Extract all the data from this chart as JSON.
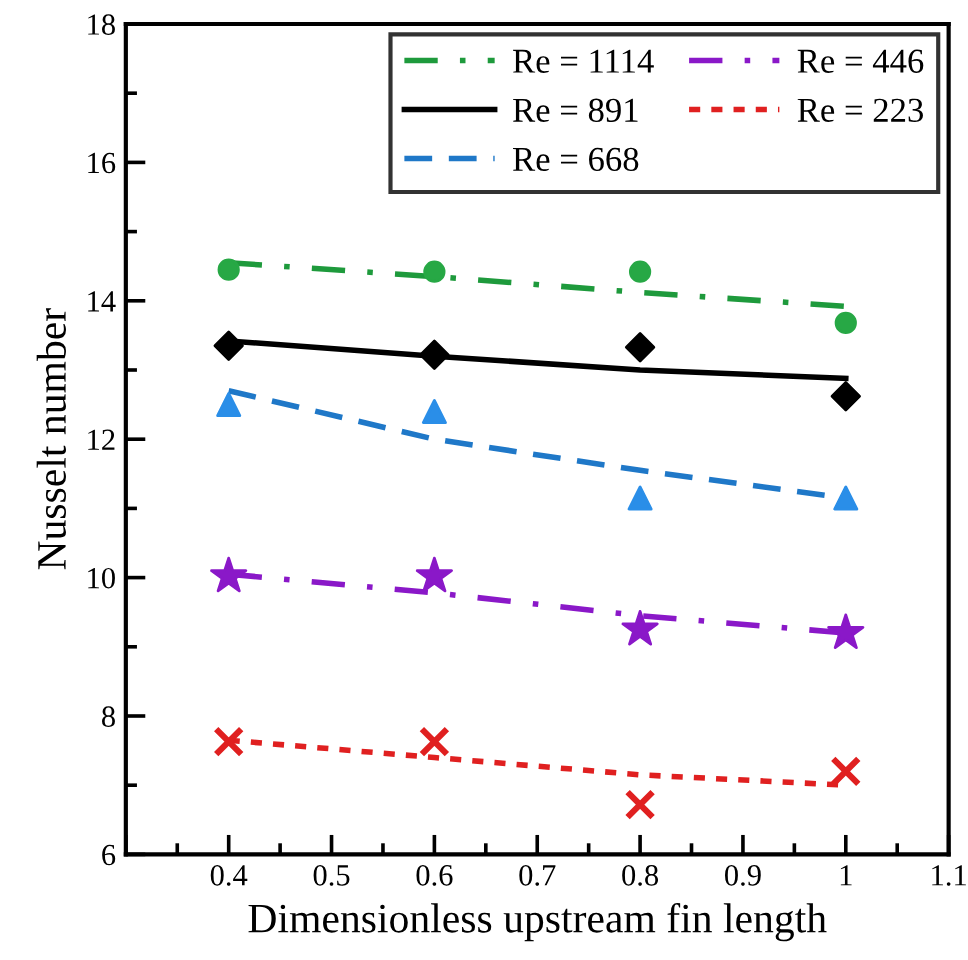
{
  "chart_data": {
    "type": "scatter",
    "xlabel": "Dimensionless upstream fin length",
    "ylabel": "Nusselt number",
    "xlim": [
      0.3,
      1.1
    ],
    "xticks": [
      {
        "value": 0.3,
        "label": null
      },
      0.4,
      0.5,
      0.6,
      0.7,
      0.8,
      0.9,
      1,
      1.1
    ],
    "ylim": [
      6,
      18
    ],
    "yticks": [
      6,
      8,
      10,
      12,
      14,
      16,
      18
    ],
    "grid": false,
    "legend": "top right",
    "series": [
      {
        "name": "Re = 1114",
        "type": "line",
        "color": "#1e9a3c",
        "line_style": "dashdot",
        "marker": "none",
        "x": [
          0.4,
          0.6,
          0.8,
          1.0
        ],
        "values": [
          14.55,
          14.35,
          14.12,
          13.92
        ]
      },
      {
        "name": "Re = 891",
        "type": "line",
        "color": "#000000",
        "line_style": "solid",
        "marker": "none",
        "x": [
          0.4,
          0.6,
          0.8,
          1.0
        ],
        "values": [
          13.42,
          13.2,
          13.0,
          12.88
        ]
      },
      {
        "name": "Re = 668",
        "type": "line",
        "color": "#1f78c8",
        "line_style": "dashed",
        "marker": "none",
        "x": [
          0.4,
          0.6,
          0.8,
          1.0
        ],
        "values": [
          12.7,
          12.0,
          11.55,
          11.15
        ]
      },
      {
        "name": "Re = 446",
        "type": "line",
        "color": "#8a18c8",
        "line_style": "dashdot",
        "marker": "none",
        "x": [
          0.4,
          0.6,
          0.8,
          1.0
        ],
        "values": [
          10.05,
          9.78,
          9.45,
          9.2
        ]
      },
      {
        "name": "Re = 223",
        "type": "line",
        "color": "#e02020",
        "line_style": "dotted",
        "marker": "none",
        "x": [
          0.4,
          0.6,
          0.8,
          1.0
        ],
        "values": [
          7.65,
          7.4,
          7.15,
          7.0
        ]
      },
      {
        "color": "#27a845",
        "marker": "circle",
        "x": [
          0.4,
          0.6,
          0.8,
          1.0
        ],
        "values": [
          14.45,
          14.42,
          14.42,
          13.68
        ]
      },
      {
        "color": "#000000",
        "marker": "diamond",
        "x": [
          0.4,
          0.6,
          0.8,
          1.0
        ],
        "values": [
          13.35,
          13.22,
          13.33,
          12.62
        ]
      },
      {
        "color": "#2a8ee8",
        "marker": "triangle",
        "x": [
          0.4,
          0.6,
          0.8,
          1.0
        ],
        "values": [
          12.5,
          12.4,
          11.15,
          11.15
        ]
      },
      {
        "color": "#8a18c8",
        "marker": "star",
        "x": [
          0.4,
          0.6,
          0.8,
          1.0
        ],
        "values": [
          10.02,
          10.02,
          9.25,
          9.2
        ]
      },
      {
        "color": "#e02020",
        "marker": "cross",
        "x": [
          0.4,
          0.6,
          0.8,
          1.0
        ],
        "values": [
          7.63,
          7.63,
          6.72,
          7.2
        ]
      }
    ]
  }
}
